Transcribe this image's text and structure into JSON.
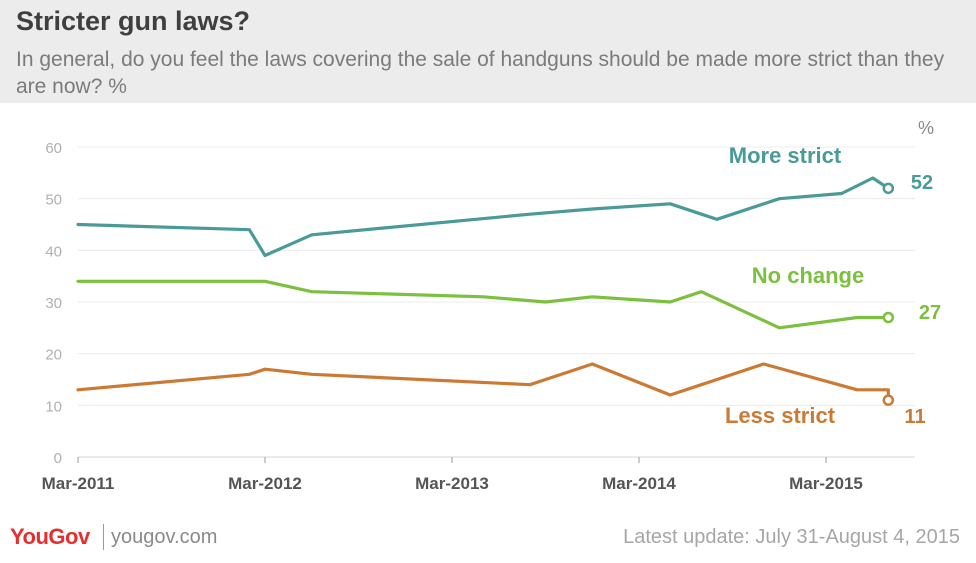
{
  "header": {
    "title": "Stricter gun laws?",
    "subtitle": "In general, do you feel the laws covering the sale of handguns should be made more strict than they are now? %"
  },
  "footer": {
    "brand": "YouGov",
    "site": "yougov.com",
    "updated": "Latest update: July 31-August 4, 2015"
  },
  "chart_data": {
    "type": "line",
    "unit_label": "%",
    "ylim": [
      0,
      60
    ],
    "yticks": [
      0,
      10,
      20,
      30,
      40,
      50,
      60
    ],
    "xticks": [
      "Mar-2011",
      "Mar-2012",
      "Mar-2013",
      "Mar-2014",
      "Mar-2015"
    ],
    "grid": true,
    "series": [
      {
        "name": "More strict",
        "color": "#4a9a99",
        "end_label": "52",
        "points": [
          [
            "2011-03",
            45
          ],
          [
            "2012-02",
            44
          ],
          [
            "2012-03",
            39
          ],
          [
            "2012-06",
            43
          ],
          [
            "2013-08",
            47
          ],
          [
            "2013-12",
            48
          ],
          [
            "2014-05",
            49
          ],
          [
            "2014-08",
            46
          ],
          [
            "2014-12",
            50
          ],
          [
            "2015-04",
            51
          ],
          [
            "2015-06",
            54
          ],
          [
            "2015-07",
            52
          ]
        ]
      },
      {
        "name": "No change",
        "color": "#7cc03f",
        "end_label": "27",
        "points": [
          [
            "2011-03",
            34
          ],
          [
            "2012-03",
            34
          ],
          [
            "2012-06",
            32
          ],
          [
            "2013-05",
            31
          ],
          [
            "2013-09",
            30
          ],
          [
            "2013-12",
            31
          ],
          [
            "2014-05",
            30
          ],
          [
            "2014-07",
            32
          ],
          [
            "2014-12",
            25
          ],
          [
            "2015-05",
            27
          ],
          [
            "2015-07",
            27
          ]
        ]
      },
      {
        "name": "Less strict",
        "color": "#cc7a33",
        "end_label": "11",
        "points": [
          [
            "2011-03",
            13
          ],
          [
            "2012-02",
            16
          ],
          [
            "2012-03",
            17
          ],
          [
            "2012-06",
            16
          ],
          [
            "2013-08",
            14
          ],
          [
            "2013-12",
            18
          ],
          [
            "2014-05",
            12
          ],
          [
            "2014-07",
            14
          ],
          [
            "2014-11",
            18
          ],
          [
            "2015-05",
            13
          ],
          [
            "2015-07",
            13
          ],
          [
            "2015-07",
            11
          ]
        ]
      }
    ]
  }
}
